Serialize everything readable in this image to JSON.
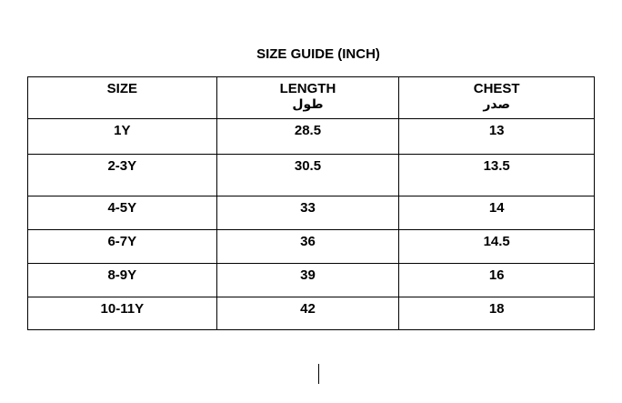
{
  "title": "SIZE GUIDE (INCH)",
  "columns": [
    {
      "label": "SIZE",
      "sub": ""
    },
    {
      "label": "LENGTH",
      "sub": "طول"
    },
    {
      "label": "CHEST",
      "sub": "صدر"
    }
  ],
  "rows": [
    [
      "1Y",
      "28.5",
      "13"
    ],
    [
      "2-3Y",
      "30.5",
      "13.5"
    ],
    [
      "4-5Y",
      "33",
      "14"
    ],
    [
      "6-7Y",
      "36",
      "14.5"
    ],
    [
      "8-9Y",
      "39",
      "16"
    ],
    [
      "10-11Y",
      "42",
      "18"
    ]
  ]
}
